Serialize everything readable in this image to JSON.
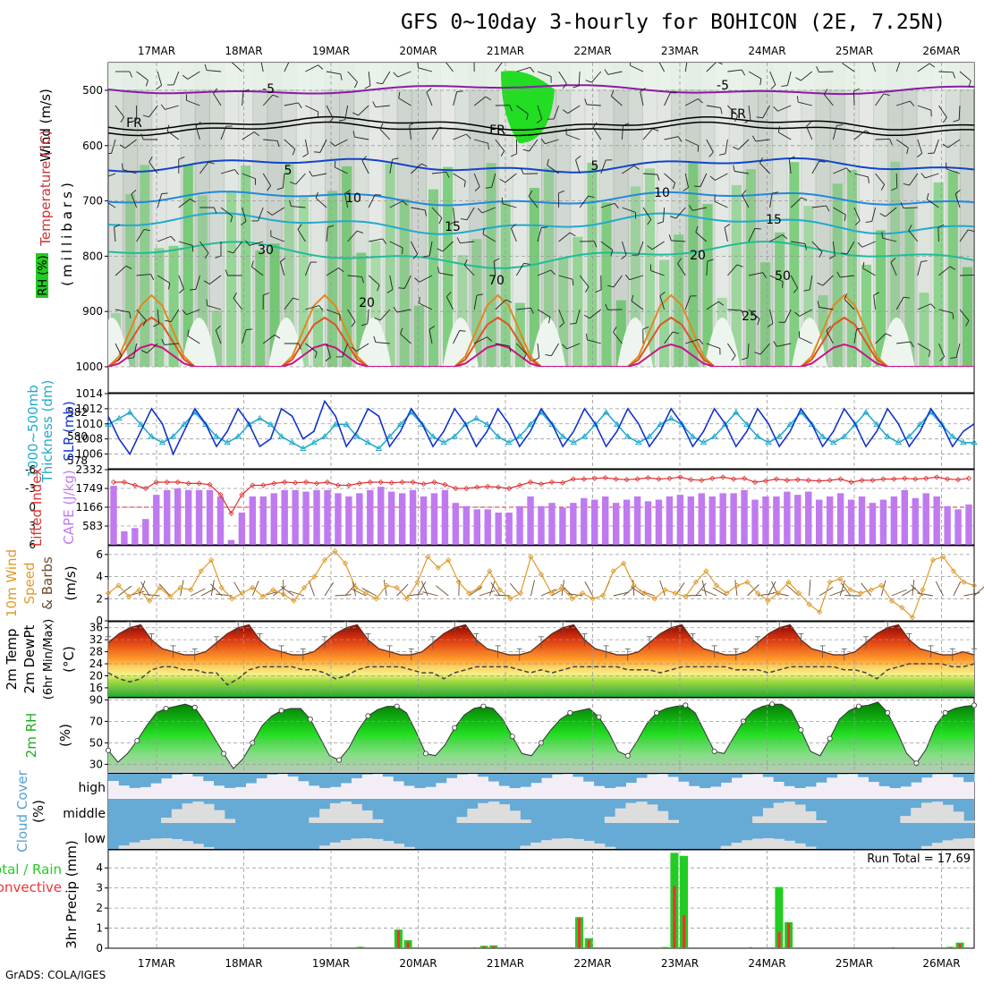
{
  "title": "GFS 0~10day 3-hourly for BOHICON (2E, 7.25N)",
  "footer": "GrADS: COLA/IGES",
  "dates": [
    "17MAR",
    "18MAR",
    "19MAR",
    "20MAR",
    "21MAR",
    "22MAR",
    "23MAR",
    "24MAR",
    "25MAR",
    "26MAR"
  ],
  "colors": {
    "rh_green": "#22cc22",
    "temp_line": "#1133cc",
    "cape_bar": "#c07af0",
    "lifted": "#dd3333",
    "wind": "#e09a2a",
    "slp": "#1133cc",
    "thick": "#22aacc",
    "rain": "#22cc22",
    "conv": "#ee3333",
    "cloud": "#66aad6"
  },
  "panels": {
    "upper": {
      "labels": [
        "Wind (m/s)",
        "Temperature (°C)",
        "RH (%)",
        "(millibars)"
      ],
      "pressure_ticks": [
        "500",
        "600",
        "700",
        "800",
        "900",
        "1000"
      ],
      "contour_labels": [
        "-5",
        "FR",
        "5",
        "10",
        "15",
        "20",
        "25",
        "30",
        "50",
        "70"
      ]
    },
    "slp": {
      "label_a": "1000~500mb",
      "label_b": "Thickness (dm)",
      "label_c": "SLP (mb)",
      "thick_ticks": [
        "582",
        "580",
        "578"
      ],
      "slp_ticks": [
        "1014",
        "1012",
        "1010",
        "1008",
        "1006"
      ]
    },
    "cape": {
      "label_a": "Lifted Index",
      "label_b": "CAPE (J/kg)",
      "li_ticks": [
        "-6",
        "-3",
        "0",
        "3",
        "6"
      ],
      "cape_ticks": [
        "2332",
        "1749",
        "1166",
        "583"
      ]
    },
    "wind10": {
      "label_a": "10m Wind",
      "label_b": "Speed",
      "label_c": "& Barbs",
      "label_d": "(m/s)",
      "ticks": [
        "6",
        "4",
        "2",
        "0"
      ]
    },
    "temp2m": {
      "label_a": "2m Temp",
      "label_b": "2m DewPt",
      "label_c": "(6hr Min/Max)",
      "label_d": "(°C)",
      "ticks": [
        "36",
        "32",
        "28",
        "24",
        "20",
        "16"
      ]
    },
    "rh2m": {
      "label_a": "2m RH",
      "label_b": "(%)",
      "ticks": [
        "90",
        "70",
        "50",
        "30"
      ]
    },
    "cloud": {
      "label_a": "Cloud Cover",
      "label_b": "(%)",
      "levels": [
        "high",
        "middle",
        "low"
      ]
    },
    "precip": {
      "label_a": "Total / Rain",
      "label_b": "Convective",
      "label_c": "3hr Precip (mm)",
      "ticks": [
        "4",
        "3",
        "2",
        "1",
        "0"
      ],
      "run_total": "Run Total = 17.69"
    }
  },
  "chart_data": [
    {
      "type": "line",
      "name": "slp_thickness",
      "x_unit": "3-hour step",
      "series": [
        {
          "name": "SLP (mb)",
          "values": [
            1011,
            1008,
            1006,
            1009,
            1012,
            1010,
            1006,
            1009,
            1012,
            1010,
            1007,
            1009,
            1012,
            1010,
            1007,
            1008,
            1012,
            1011,
            1008,
            1009,
            1013,
            1011,
            1007,
            1009,
            1012,
            1011,
            1007,
            1009,
            1012,
            1010,
            1007,
            1009,
            1012,
            1010,
            1007,
            1009,
            1012,
            1010,
            1007,
            1009,
            1012,
            1010,
            1007,
            1009,
            1012,
            1010,
            1007,
            1009,
            1012,
            1010,
            1007,
            1009,
            1012,
            1010,
            1007,
            1009,
            1012,
            1010,
            1007,
            1009,
            1012,
            1010,
            1007,
            1009,
            1012,
            1010,
            1007,
            1009,
            1012,
            1010,
            1007,
            1009,
            1012,
            1010,
            1007,
            1009,
            1012,
            1010,
            1007,
            1009,
            1010
          ]
        },
        {
          "name": "Thickness (dm)",
          "values": [
            581,
            581.5,
            582,
            581,
            580,
            579.5,
            580,
            581,
            582,
            581,
            580,
            579.5,
            580,
            581,
            581.5,
            581,
            580,
            579.5,
            579,
            579.5,
            580,
            581,
            581,
            580,
            579.5,
            579,
            580,
            581,
            582,
            581,
            580,
            579.5,
            580,
            581,
            581.5,
            581,
            580,
            579.5,
            580,
            581,
            582,
            581,
            580,
            579.5,
            580,
            581,
            582,
            581,
            580,
            579.5,
            580,
            581,
            581.5,
            581,
            580,
            579.5,
            580,
            581,
            582,
            581,
            580,
            579.5,
            580,
            581,
            582,
            581,
            580,
            579.5,
            580,
            581,
            582,
            581,
            580,
            579.5,
            580,
            581,
            582,
            581,
            580,
            579.5,
            579.5
          ]
        }
      ]
    },
    {
      "type": "bar",
      "name": "cape_li",
      "series": [
        {
          "name": "CAPE (J/kg)",
          "values": [
            1830,
            420,
            520,
            800,
            1550,
            1700,
            1750,
            1700,
            1700,
            1700,
            1500,
            150,
            1000,
            1500,
            1500,
            1600,
            1700,
            1700,
            1650,
            1700,
            1700,
            1600,
            1500,
            1600,
            1700,
            1800,
            1650,
            1600,
            1700,
            1500,
            1600,
            1700,
            1300,
            1200,
            1100,
            1100,
            1000,
            1000,
            1200,
            1500,
            1200,
            1300,
            1150,
            1300,
            1450,
            1400,
            1500,
            1300,
            1400,
            1500,
            1350,
            1400,
            1500,
            1550,
            1500,
            1600,
            1500,
            1600,
            1600,
            1700,
            1400,
            1500,
            1500,
            1650,
            1550,
            1650,
            1400,
            1500,
            1600,
            1400,
            1500,
            1300,
            1400,
            1500,
            1700,
            1450,
            1600,
            1500,
            1200,
            1100,
            1250
          ]
        },
        {
          "name": "Lifted Index",
          "values": [
            -4,
            -4,
            -3.5,
            -3,
            -4,
            -4,
            -4,
            -3.8,
            -3.8,
            -3.6,
            -2,
            1,
            -2,
            -3.5,
            -3.5,
            -3.8,
            -4,
            -3.9,
            -4,
            -3.8,
            -4,
            -3.5,
            -3.5,
            -3.8,
            -4,
            -4,
            -3.9,
            -4,
            -4,
            -3.7,
            -4,
            -3.6,
            -3,
            -3,
            -3.2,
            -3.3,
            -3.2,
            -3,
            -3.5,
            -4,
            -3.7,
            -4,
            -3.9,
            -4.5,
            -4.5,
            -4.6,
            -4.7,
            -4.5,
            -4.4,
            -4.5,
            -4.7,
            -4.5,
            -4.6,
            -4.8,
            -4.4,
            -4.3,
            -4.6,
            -4.8,
            -4.5,
            -4.6,
            -4,
            -4.2,
            -4.5,
            -4.3,
            -4.4,
            -4.3,
            -4.2,
            -4.3,
            -4.5,
            -4,
            -4.3,
            -4.3,
            -4.5,
            -4.5,
            -4.6,
            -4.5,
            -4.6,
            -4.8,
            -4.5,
            -4.4,
            -4.6
          ]
        }
      ]
    },
    {
      "type": "line",
      "name": "wind10m_speed",
      "series": [
        {
          "name": "Speed (m/s)",
          "values": [
            2.5,
            3.2,
            2.2,
            2.8,
            1.8,
            3,
            2.2,
            3,
            2.8,
            4.5,
            5.5,
            3,
            2,
            2.5,
            3,
            2.2,
            2.8,
            2.4,
            1.8,
            3,
            4,
            5.5,
            6.3,
            5.2,
            3,
            2.5,
            2,
            3.2,
            3,
            2,
            3.5,
            5.8,
            4.8,
            5.5,
            3.5,
            2.5,
            3,
            4.5,
            2.8,
            2,
            2.5,
            5.8,
            4.2,
            2.5,
            3,
            2,
            2.5,
            2,
            2.3,
            4.5,
            5.2,
            3.2,
            2.5,
            2,
            2.8,
            2.5,
            2.2,
            3.5,
            4.5,
            3.2,
            2.5,
            3.2,
            3.5,
            2.5,
            1.8,
            2.5,
            3.5,
            2.5,
            1.5,
            0.8,
            3.5,
            3.8,
            2.8,
            2.5,
            2.8,
            3.2,
            1.8,
            1.2,
            0.3,
            2.8,
            5.5,
            5.8,
            4.5,
            3.5,
            3.2
          ]
        }
      ]
    },
    {
      "type": "area",
      "name": "temp_dew_2m",
      "series": [
        {
          "name": "2m Temp (°C)",
          "values": [
            31,
            34,
            36,
            37,
            32,
            29,
            28,
            27,
            27,
            28,
            31,
            34,
            36,
            37,
            32,
            29,
            28,
            27,
            27,
            28,
            31,
            34,
            36,
            37,
            32,
            29,
            28,
            27,
            27,
            28,
            31,
            34,
            36,
            37,
            32,
            29,
            28,
            27,
            27,
            28,
            31,
            34,
            36,
            37,
            32,
            29,
            28,
            27,
            27,
            28,
            31,
            34,
            36,
            37,
            32,
            29,
            28,
            27,
            27,
            28,
            31,
            34,
            36,
            37,
            32,
            29,
            28,
            27,
            27,
            28,
            31,
            34,
            36,
            37,
            32,
            29,
            28,
            27,
            27,
            28,
            27
          ]
        },
        {
          "name": "2m DewPt (°C)",
          "values": [
            21,
            19,
            18,
            19,
            22,
            23,
            23,
            22,
            22,
            21,
            21,
            17,
            19,
            22,
            23,
            23,
            23,
            23,
            22,
            22,
            21,
            19,
            20,
            22,
            23,
            23,
            23,
            23,
            22,
            21,
            21,
            19,
            21,
            22,
            23,
            23,
            23,
            23,
            22,
            21,
            22,
            21,
            22,
            23,
            23,
            23,
            23,
            23,
            22,
            22,
            22,
            21,
            22,
            23,
            23,
            23,
            23,
            23,
            22,
            22,
            22,
            21,
            22,
            23,
            23,
            23,
            23,
            23,
            22,
            22,
            21,
            19,
            22,
            23,
            24,
            24,
            24,
            24,
            23,
            23,
            24
          ]
        }
      ]
    },
    {
      "type": "area",
      "name": "rh_2m",
      "series": [
        {
          "name": "2m RH (%)",
          "values": [
            43,
            32,
            40,
            52,
            66,
            78,
            82,
            84,
            86,
            83,
            70,
            55,
            40,
            26,
            35,
            50,
            66,
            75,
            80,
            82,
            82,
            72,
            55,
            38,
            34,
            45,
            62,
            75,
            81,
            84,
            84,
            78,
            60,
            40,
            38,
            48,
            64,
            76,
            82,
            84,
            82,
            72,
            56,
            40,
            38,
            50,
            62,
            72,
            78,
            80,
            82,
            74,
            60,
            42,
            38,
            52,
            68,
            78,
            82,
            84,
            85,
            78,
            60,
            42,
            40,
            55,
            70,
            80,
            84,
            86,
            86,
            80,
            62,
            42,
            38,
            54,
            72,
            80,
            84,
            85,
            88,
            78,
            60,
            40,
            31,
            44,
            66,
            78,
            82,
            84,
            85
          ]
        }
      ]
    },
    {
      "type": "bar",
      "name": "precip_3hr",
      "series": [
        {
          "name": "Total (mm)",
          "values": [
            0,
            0,
            0,
            0,
            0,
            0,
            0,
            0,
            0,
            0,
            0,
            0,
            0,
            0,
            0,
            0,
            0,
            0,
            0,
            0,
            0,
            0,
            0,
            0,
            0,
            0,
            0.07,
            0,
            0,
            0,
            0.93,
            0.4,
            0,
            0,
            0,
            0,
            0,
            0,
            0.05,
            0.12,
            0.14,
            0,
            0,
            0,
            0,
            0,
            0,
            0,
            0,
            1.55,
            0.5,
            0,
            0,
            0,
            0,
            0,
            0,
            0,
            0.06,
            4.75,
            4.6,
            0,
            0,
            0,
            0,
            0,
            0,
            0.05,
            0,
            0,
            3.05,
            1.3,
            0,
            0,
            0,
            0,
            0,
            0,
            0,
            0,
            0,
            0,
            0.05,
            0,
            0,
            0,
            0,
            0,
            0.07,
            0.28,
            0
          ]
        },
        {
          "name": "Convective (mm)",
          "values": [
            0,
            0,
            0,
            0,
            0,
            0,
            0,
            0,
            0,
            0,
            0,
            0,
            0,
            0,
            0,
            0,
            0,
            0,
            0,
            0,
            0,
            0,
            0,
            0,
            0,
            0,
            0.05,
            0,
            0,
            0,
            0.9,
            0.3,
            0,
            0,
            0,
            0,
            0,
            0,
            0.03,
            0.09,
            0.1,
            0,
            0,
            0,
            0,
            0,
            0,
            0,
            0,
            1.5,
            0.4,
            0,
            0,
            0,
            0,
            0,
            0,
            0,
            0.04,
            3.1,
            1.65,
            0,
            0,
            0,
            0,
            0,
            0,
            0.05,
            0,
            0,
            0.82,
            1.25,
            0,
            0,
            0,
            0,
            0,
            0,
            0,
            0,
            0,
            0,
            0.04,
            0,
            0,
            0,
            0,
            0,
            0.05,
            0.22,
            0
          ]
        }
      ]
    }
  ]
}
